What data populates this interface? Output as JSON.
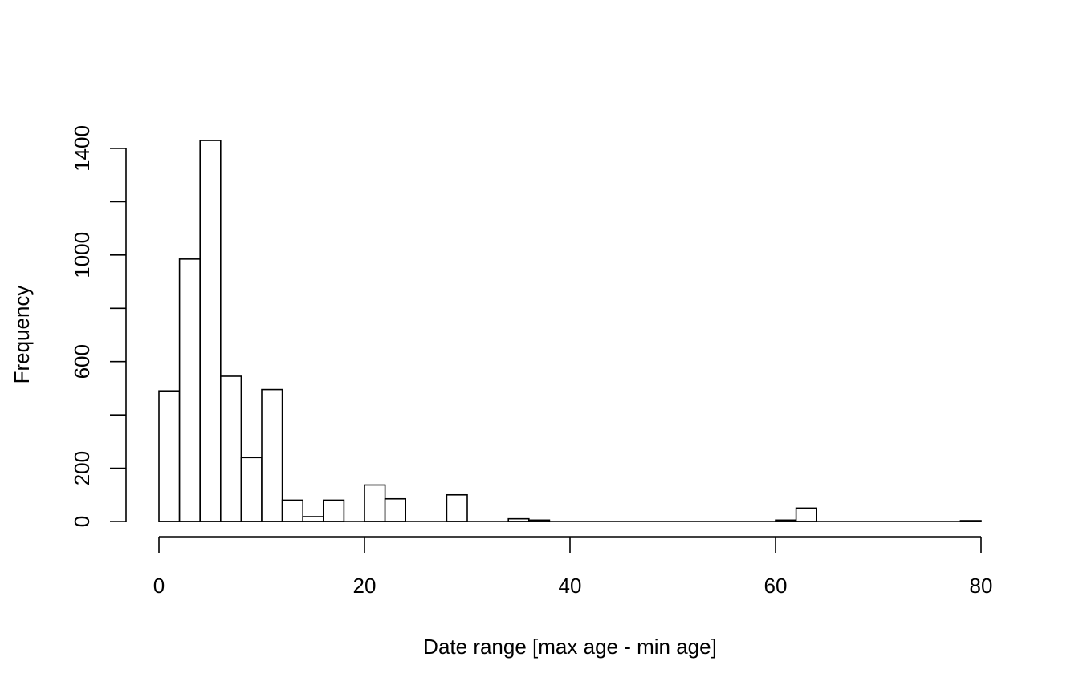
{
  "chart_data": {
    "type": "bar",
    "title": "",
    "xlabel": "Date range [max age - min age]",
    "ylabel": "Frequency",
    "bin_width": 2,
    "bin_starts": [
      0,
      2,
      4,
      6,
      8,
      10,
      12,
      14,
      16,
      18,
      20,
      22,
      24,
      26,
      28,
      30,
      32,
      34,
      36,
      38,
      40,
      42,
      44,
      46,
      48,
      50,
      52,
      54,
      56,
      58,
      60,
      62,
      64,
      66,
      68,
      70,
      72,
      74,
      76,
      78
    ],
    "values": [
      490,
      985,
      1430,
      545,
      240,
      495,
      80,
      18,
      80,
      0,
      137,
      85,
      0,
      0,
      100,
      0,
      0,
      10,
      5,
      0,
      0,
      0,
      0,
      0,
      0,
      0,
      0,
      0,
      0,
      0,
      5,
      50,
      0,
      0,
      0,
      0,
      0,
      0,
      0,
      3
    ],
    "xlim": [
      0,
      80
    ],
    "ylim": [
      0,
      1400
    ],
    "x_ticks": [
      "0",
      "20",
      "40",
      "60",
      "80"
    ],
    "y_ticks": [
      "0",
      "200",
      "600",
      "1000",
      "1400"
    ],
    "grid": false,
    "legend": "none"
  }
}
